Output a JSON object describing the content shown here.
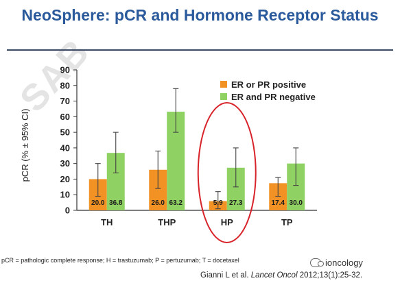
{
  "slide": {
    "title": "NeoSphere: pCR and Hormone Receptor Status",
    "watermark": "SAB",
    "footnote": "pCR = pathologic complete response; H = trastuzumab; P = pertuzumab; T = docetaxel",
    "citation_prefix": "Gianni L et al. ",
    "citation_journal": "Lancet Oncol",
    "citation_suffix": " 2012;13(1):25-32.",
    "brand": "ioncology",
    "highlight_color": "#d8232a"
  },
  "chart_data": {
    "type": "bar",
    "title": "NeoSphere: pCR and Hormone Receptor Status",
    "ylabel": "pCR (% ± 95% CI)",
    "xlabel": "",
    "ylim": [
      0,
      90
    ],
    "yticks": [
      "0",
      "10",
      "20",
      "30",
      "40",
      "50",
      "60",
      "70",
      "80",
      "90"
    ],
    "grid": false,
    "legend_position": "top-right",
    "categories": [
      "TH",
      "THP",
      "HP",
      "TP"
    ],
    "highlighted_category": "HP",
    "series": [
      {
        "name": "ER or PR positive",
        "color": "#f39224",
        "values": [
          20.0,
          26.0,
          5.9,
          17.4
        ],
        "labels": [
          "20.0",
          "26.0",
          "5.9",
          "17.4"
        ],
        "ci_low": [
          9,
          14,
          1,
          9
        ],
        "ci_high": [
          30,
          38,
          12,
          21
        ]
      },
      {
        "name": "ER and PR negative",
        "color": "#8fd163",
        "values": [
          36.8,
          63.2,
          27.3,
          30.0
        ],
        "labels": [
          "36.8",
          "63.2",
          "27.3",
          "30.0"
        ],
        "ci_low": [
          24,
          50,
          15,
          16
        ],
        "ci_high": [
          50,
          78,
          40,
          40
        ]
      }
    ]
  }
}
